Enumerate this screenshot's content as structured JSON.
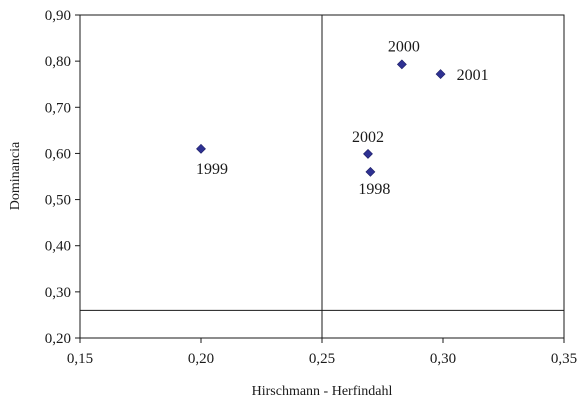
{
  "chart_data": {
    "type": "scatter",
    "title": "",
    "xlabel": "Hirschmann - Herfindahl",
    "ylabel": "Dominancia",
    "xlim": [
      0.15,
      0.35
    ],
    "ylim": [
      0.2,
      0.9
    ],
    "x_ticks": [
      "0,15",
      "0,20",
      "0,25",
      "0,30",
      "0,35"
    ],
    "y_ticks": [
      "0,20",
      "0,30",
      "0,40",
      "0,50",
      "0,60",
      "0,70",
      "0,80",
      "0,90"
    ],
    "grid": false,
    "reference_lines": {
      "x": 0.25,
      "y": 0.26
    },
    "marker_color": "#2e3192",
    "points": [
      {
        "label": "1999",
        "x": 0.2,
        "y": 0.61
      },
      {
        "label": "2000",
        "x": 0.283,
        "y": 0.793
      },
      {
        "label": "2001",
        "x": 0.299,
        "y": 0.772
      },
      {
        "label": "2002",
        "x": 0.269,
        "y": 0.599
      },
      {
        "label": "1998",
        "x": 0.27,
        "y": 0.56
      }
    ]
  }
}
